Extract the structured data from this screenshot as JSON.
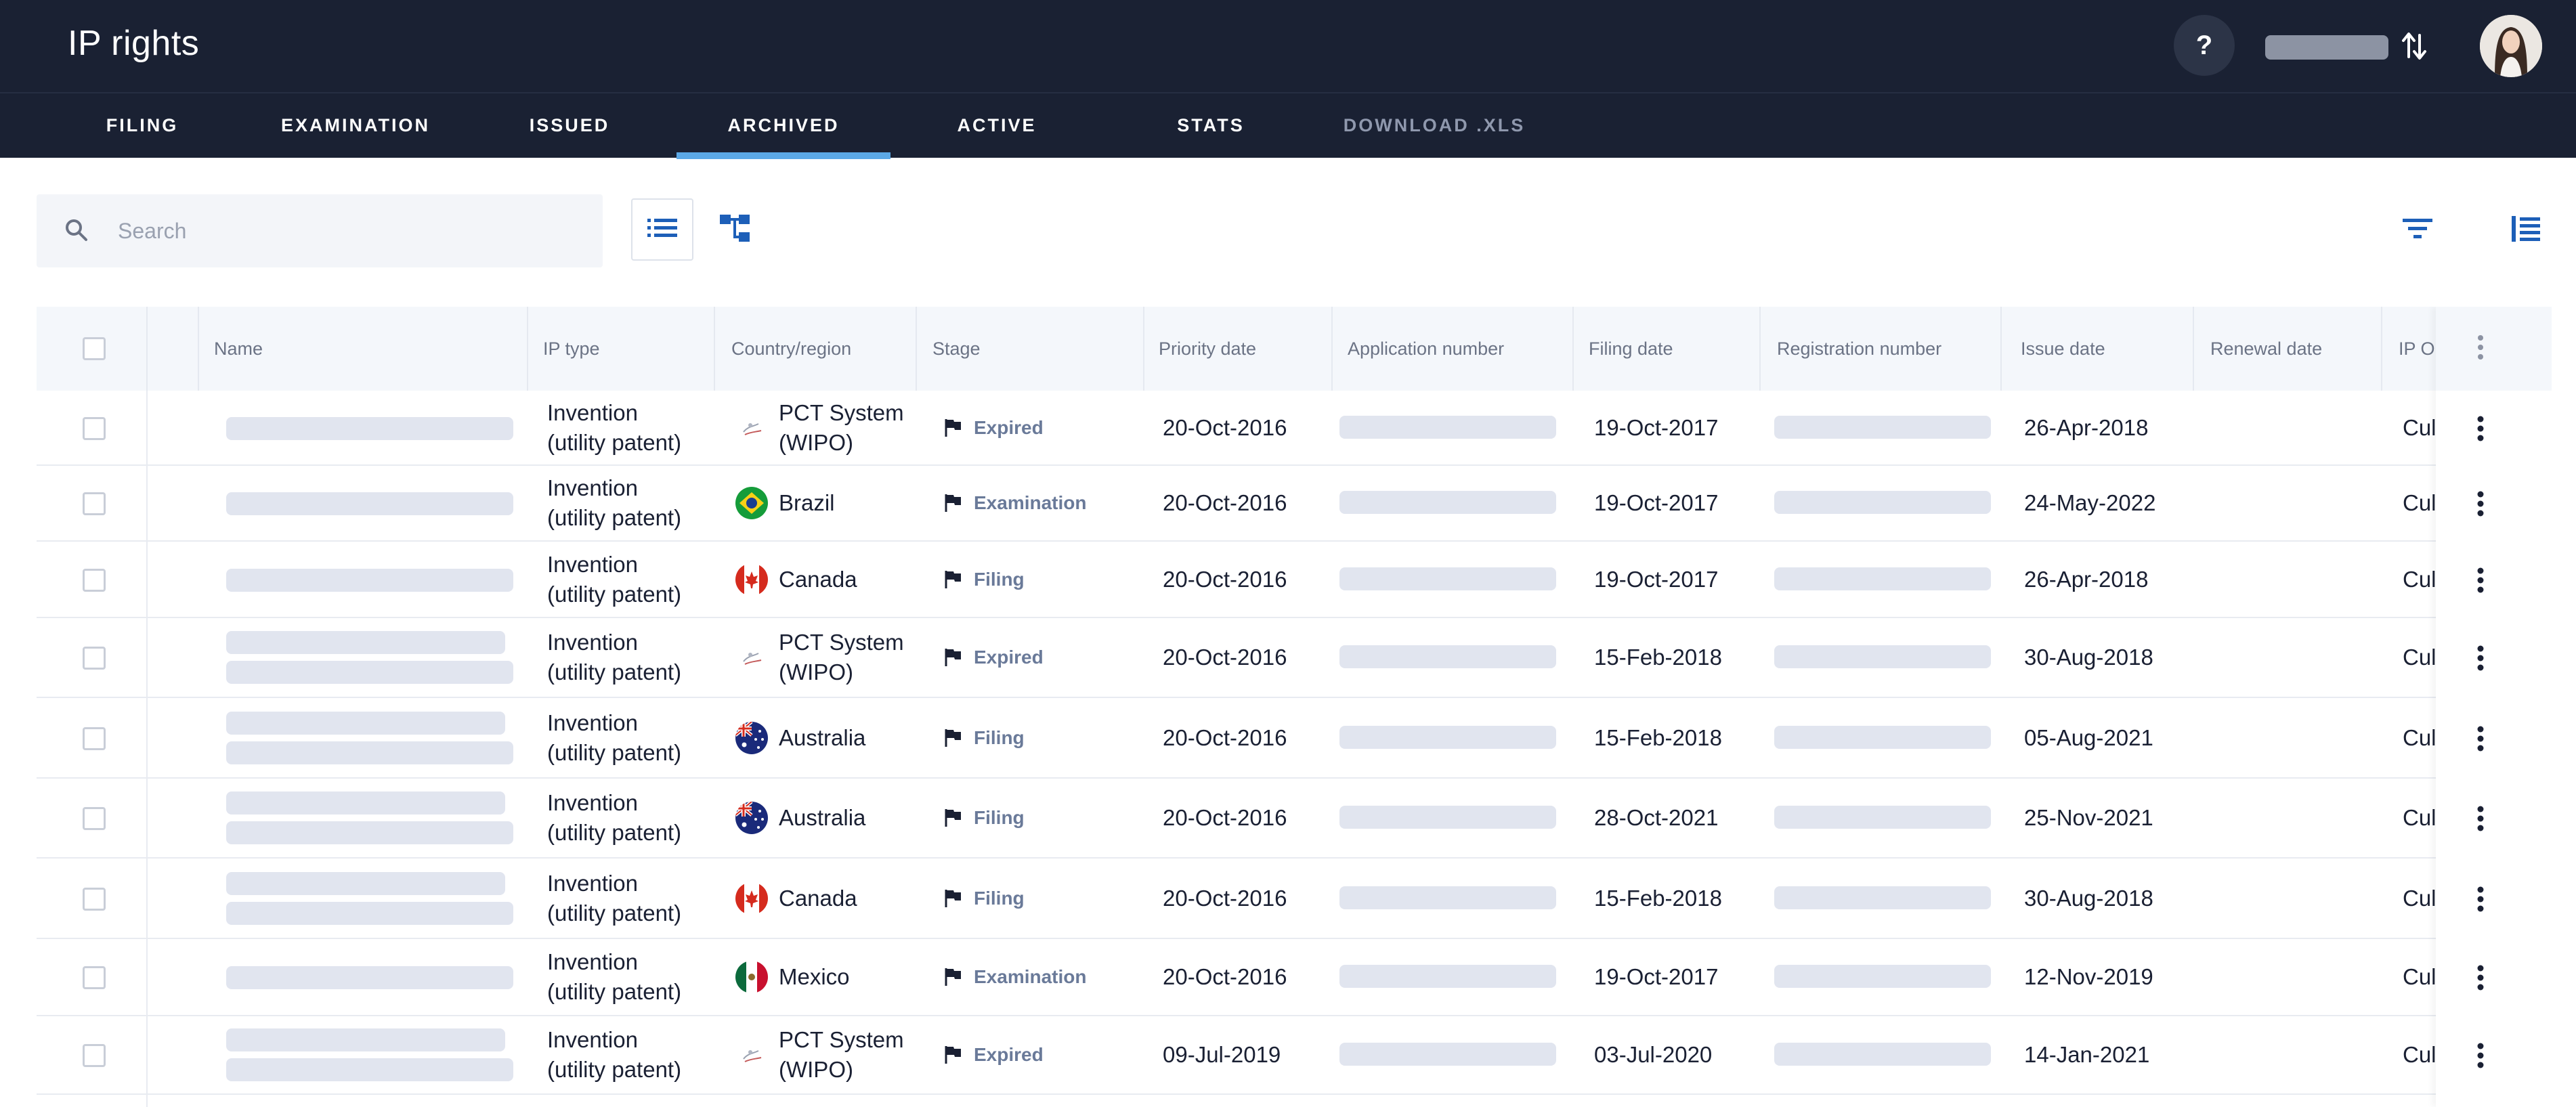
{
  "header": {
    "title": "IP rights",
    "help_label": "?"
  },
  "tabs": [
    {
      "label": "FILING",
      "active": false
    },
    {
      "label": "EXAMINATION",
      "active": false
    },
    {
      "label": "ISSUED",
      "active": false
    },
    {
      "label": "ARCHIVED",
      "active": true
    },
    {
      "label": "ACTIVE",
      "active": false
    },
    {
      "label": "STATS",
      "active": false
    },
    {
      "label": "DOWNLOAD .XLS",
      "active": false
    }
  ],
  "search": {
    "placeholder": "Search",
    "value": ""
  },
  "table": {
    "columns": [
      "Name",
      "IP type",
      "Country/region",
      "Stage",
      "Priority date",
      "Application number",
      "Filing date",
      "Registration number",
      "Issue date",
      "Renewal date",
      "IP O"
    ],
    "rows": [
      {
        "name_lines": 1,
        "ip_type": [
          "Invention",
          "(utility patent)"
        ],
        "country": [
          "PCT System",
          "(WIPO)"
        ],
        "flag": "wipo-flag-icon",
        "stage": "Expired",
        "priority_date": "20-Oct-2016",
        "filing_date": "19-Oct-2017",
        "issue_date": "26-Apr-2018",
        "renewal_date": "",
        "ip_owner": "Cul"
      },
      {
        "name_lines": 1,
        "ip_type": [
          "Invention",
          "(utility patent)"
        ],
        "country": [
          "Brazil"
        ],
        "flag": "brazil-flag-icon",
        "stage": "Examination",
        "priority_date": "20-Oct-2016",
        "filing_date": "19-Oct-2017",
        "issue_date": "24-May-2022",
        "renewal_date": "",
        "ip_owner": "Cul"
      },
      {
        "name_lines": 1,
        "ip_type": [
          "Invention",
          "(utility patent)"
        ],
        "country": [
          "Canada"
        ],
        "flag": "canada-flag-icon",
        "stage": "Filing",
        "priority_date": "20-Oct-2016",
        "filing_date": "19-Oct-2017",
        "issue_date": "26-Apr-2018",
        "renewal_date": "",
        "ip_owner": "Cul"
      },
      {
        "name_lines": 2,
        "ip_type": [
          "Invention",
          "(utility patent)"
        ],
        "country": [
          "PCT System",
          "(WIPO)"
        ],
        "flag": "wipo-flag-icon",
        "stage": "Expired",
        "priority_date": "20-Oct-2016",
        "filing_date": "15-Feb-2018",
        "issue_date": "30-Aug-2018",
        "renewal_date": "",
        "ip_owner": "Cul"
      },
      {
        "name_lines": 2,
        "ip_type": [
          "Invention",
          "(utility patent)"
        ],
        "country": [
          "Australia"
        ],
        "flag": "australia-flag-icon",
        "stage": "Filing",
        "priority_date": "20-Oct-2016",
        "filing_date": "15-Feb-2018",
        "issue_date": "05-Aug-2021",
        "renewal_date": "",
        "ip_owner": "Cul"
      },
      {
        "name_lines": 2,
        "ip_type": [
          "Invention",
          "(utility patent)"
        ],
        "country": [
          "Australia"
        ],
        "flag": "australia-flag-icon",
        "stage": "Filing",
        "priority_date": "20-Oct-2016",
        "filing_date": "28-Oct-2021",
        "issue_date": "25-Nov-2021",
        "renewal_date": "",
        "ip_owner": "Cul"
      },
      {
        "name_lines": 2,
        "ip_type": [
          "Invention",
          "(utility patent)"
        ],
        "country": [
          "Canada"
        ],
        "flag": "canada-flag-icon",
        "stage": "Filing",
        "priority_date": "20-Oct-2016",
        "filing_date": "15-Feb-2018",
        "issue_date": "30-Aug-2018",
        "renewal_date": "",
        "ip_owner": "Cul"
      },
      {
        "name_lines": 1,
        "ip_type": [
          "Invention",
          "(utility patent)"
        ],
        "country": [
          "Mexico"
        ],
        "flag": "mexico-flag-icon",
        "stage": "Examination",
        "priority_date": "20-Oct-2016",
        "filing_date": "19-Oct-2017",
        "issue_date": "12-Nov-2019",
        "renewal_date": "",
        "ip_owner": "Cul"
      },
      {
        "name_lines": 2,
        "ip_type": [
          "Invention",
          "(utility patent)"
        ],
        "country": [
          "PCT System",
          "(WIPO)"
        ],
        "flag": "wipo-flag-icon",
        "stage": "Expired",
        "priority_date": "09-Jul-2019",
        "filing_date": "03-Jul-2020",
        "issue_date": "14-Jan-2021",
        "renewal_date": "",
        "ip_owner": "Cul"
      }
    ]
  },
  "colors": {
    "topbar": "#1a2133",
    "tab_active_underline": "#5ba8e6",
    "accent_blue": "#1d5fb8",
    "stage_text": "#6a7a99",
    "redaction": "#e1e5ef"
  }
}
